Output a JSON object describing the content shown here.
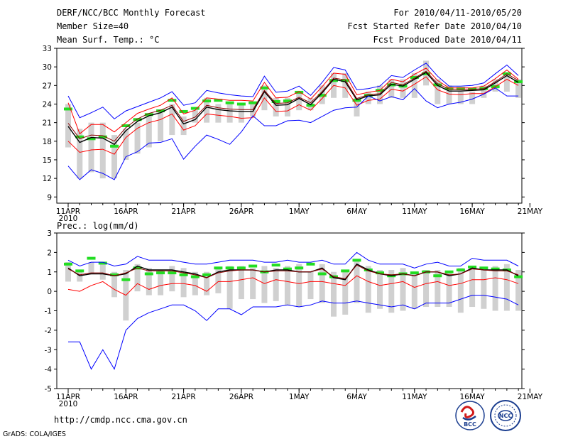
{
  "header": {
    "title": "DERF/NCC/BCC Monthly Forecast",
    "member_size": "Member Size=40",
    "variable": "Mean Surf. Temp.: °C",
    "period": "For 2010/04/11-2010/05/20",
    "start_ref": "Fcst Started Refer Date 2010/04/10",
    "produced": "Fcst Produced Date 2010/04/11"
  },
  "footer": {
    "url": "http://cmdp.ncc.cma.gov.cn",
    "credit": "GrADS: COLA/IGES",
    "logo_bcc": "BCC",
    "logo_ncc": "NCC"
  },
  "colors": {
    "mean": "#000000",
    "obs": "#8b0000",
    "spread_hi": "#ff0000",
    "spread_lo": "#ff0000",
    "envelope": "#0000ff",
    "box": "#d0d0d0",
    "clim": "#22dd22"
  },
  "chart_data": [
    {
      "type": "line",
      "title": "Mean Surf. Temp.: °C",
      "x": [
        "11APR",
        "12APR",
        "13APR",
        "14APR",
        "15APR",
        "16APR",
        "17APR",
        "18APR",
        "19APR",
        "20APR",
        "21APR",
        "22APR",
        "23APR",
        "24APR",
        "25APR",
        "26APR",
        "27APR",
        "28APR",
        "29APR",
        "30APR",
        "1MAY",
        "2MAY",
        "3MAY",
        "4MAY",
        "5MAY",
        "6MAY",
        "7MAY",
        "8MAY",
        "9MAY",
        "10MAY",
        "11MAY",
        "12MAY",
        "13MAY",
        "14MAY",
        "15MAY",
        "16MAY",
        "17MAY",
        "18MAY",
        "19MAY",
        "20MAY"
      ],
      "xtick_labels": [
        "11APR",
        "16APR",
        "21APR",
        "26APR",
        "1MAY",
        "6MAY",
        "11MAY",
        "16MAY",
        "21MAY"
      ],
      "xtick_sub": "2010",
      "ylim": [
        8,
        33
      ],
      "yticks": [
        9,
        12,
        15,
        18,
        21,
        24,
        27,
        30,
        33
      ],
      "series": [
        {
          "name": "ensemble-max",
          "values": [
            25.3,
            21.8,
            22.6,
            23.5,
            21.6,
            22.9,
            23.6,
            24.3,
            25.0,
            26.0,
            23.8,
            24.2,
            26.2,
            25.8,
            25.5,
            25.3,
            25.2,
            28.5,
            25.9,
            26.1,
            26.9,
            25.4,
            27.5,
            29.9,
            29.5,
            26.3,
            26.5,
            26.9,
            28.6,
            28.3,
            29.5,
            30.6,
            28.5,
            26.9,
            26.9,
            27.0,
            27.4,
            28.9,
            30.3,
            28.6
          ]
        },
        {
          "name": "spread-hi",
          "values": [
            24.2,
            19.2,
            20.7,
            20.7,
            19.5,
            21.0,
            22.5,
            23.2,
            23.8,
            25.0,
            22.4,
            23.0,
            25.0,
            24.8,
            24.6,
            24.6,
            24.5,
            27.5,
            25.0,
            25.1,
            26.0,
            24.8,
            26.8,
            29.0,
            28.8,
            25.5,
            25.9,
            26.2,
            28.0,
            27.6,
            28.8,
            29.8,
            27.8,
            26.6,
            26.6,
            26.6,
            26.9,
            28.1,
            29.5,
            28.0
          ]
        },
        {
          "name": "ensemble-mean",
          "values": [
            20.4,
            17.8,
            18.6,
            18.5,
            17.5,
            19.7,
            21.2,
            22.1,
            22.6,
            23.5,
            20.8,
            21.5,
            23.5,
            23.1,
            22.9,
            22.8,
            22.8,
            26.0,
            23.8,
            23.9,
            24.9,
            23.9,
            25.8,
            28.0,
            27.6,
            24.7,
            25.3,
            25.5,
            27.2,
            26.9,
            28.0,
            29.1,
            27.0,
            26.1,
            26.1,
            26.2,
            26.3,
            27.4,
            28.6,
            27.5
          ]
        },
        {
          "name": "observed",
          "values": [
            20.9,
            18.4,
            19.0,
            18.9,
            18.0,
            20.2,
            21.6,
            22.5,
            23.0,
            23.8,
            21.2,
            21.9,
            23.8,
            23.4,
            23.2,
            23.1,
            23.1,
            26.2,
            24.1,
            24.2,
            25.1,
            24.2,
            26.0,
            28.2,
            27.9,
            24.9,
            25.5,
            25.7,
            27.5,
            27.1,
            28.2,
            29.3,
            27.3,
            26.4,
            26.3,
            26.4,
            26.5,
            27.6,
            28.9,
            27.8
          ]
        },
        {
          "name": "spread-lo",
          "values": [
            18.0,
            16.2,
            16.6,
            16.7,
            15.9,
            18.6,
            20.1,
            21.0,
            21.5,
            22.4,
            19.8,
            20.5,
            22.4,
            22.2,
            22.0,
            21.7,
            21.8,
            25.0,
            22.8,
            22.9,
            23.9,
            23.0,
            24.9,
            27.0,
            26.6,
            23.8,
            24.6,
            24.8,
            26.4,
            26.1,
            27.2,
            28.4,
            26.3,
            25.6,
            25.5,
            25.7,
            25.7,
            26.8,
            28.0,
            27.0
          ]
        },
        {
          "name": "ensemble-min",
          "values": [
            14.0,
            11.8,
            13.4,
            12.8,
            11.8,
            15.5,
            16.3,
            17.7,
            17.8,
            18.4,
            15.1,
            17.2,
            19.0,
            18.3,
            17.5,
            19.5,
            22.1,
            20.5,
            20.5,
            21.3,
            21.4,
            21.0,
            22.0,
            23.0,
            23.4,
            23.5,
            25.3,
            24.5,
            25.2,
            24.7,
            26.5,
            24.5,
            23.4,
            24.0,
            24.3,
            24.8,
            25.6,
            26.6,
            25.3,
            25.3
          ]
        }
      ],
      "boxes_low": [
        17,
        12,
        13,
        12,
        12,
        15,
        16,
        17,
        18,
        19,
        19,
        21,
        21,
        21,
        21,
        21,
        22,
        23,
        22,
        22,
        23,
        23,
        24,
        25,
        25,
        22,
        24,
        24,
        25,
        25,
        25,
        27,
        24,
        24,
        24,
        24,
        25,
        26,
        26,
        25
      ],
      "boxes_high": [
        24,
        20,
        21,
        21,
        19,
        20,
        21,
        22,
        23,
        24,
        22,
        23,
        25,
        24,
        24,
        24,
        24,
        27,
        25,
        25,
        26,
        25,
        27,
        29,
        29,
        25,
        26,
        27,
        28,
        28,
        29,
        31,
        28,
        27,
        26,
        26,
        27,
        28,
        29,
        28
      ],
      "clim_marks": [
        23.2,
        18.7,
        18.4,
        18.7,
        17.2,
        20.5,
        21.5,
        22.3,
        22.9,
        24.6,
        22.8,
        23.3,
        24.5,
        24.6,
        24.2,
        24.0,
        24.2,
        26.6,
        24.4,
        24.5,
        25.9,
        23.8,
        25.4,
        27.8,
        27.8,
        24.6,
        25.4,
        26.2,
        27.1,
        26.9,
        28.3,
        28.9,
        27.1,
        26.5,
        26.5,
        26.4,
        26.5,
        26.8,
        28.9,
        27.6
      ]
    },
    {
      "type": "line",
      "title": "Prec.: log(mm/d)",
      "x": [
        "11APR",
        "12APR",
        "13APR",
        "14APR",
        "15APR",
        "16APR",
        "17APR",
        "18APR",
        "19APR",
        "20APR",
        "21APR",
        "22APR",
        "23APR",
        "24APR",
        "25APR",
        "26APR",
        "27APR",
        "28APR",
        "29APR",
        "30APR",
        "1MAY",
        "2MAY",
        "3MAY",
        "4MAY",
        "5MAY",
        "6MAY",
        "7MAY",
        "8MAY",
        "9MAY",
        "10MAY",
        "11MAY",
        "12MAY",
        "13MAY",
        "14MAY",
        "15MAY",
        "16MAY",
        "17MAY",
        "18MAY",
        "19MAY",
        "20MAY"
      ],
      "xtick_labels": [
        "11APR",
        "16APR",
        "21APR",
        "26APR",
        "1MAY",
        "6MAY",
        "11MAY",
        "16MAY",
        "21MAY"
      ],
      "xtick_sub": "2010",
      "ylim": [
        -5,
        3
      ],
      "yticks": [
        -5,
        -4,
        -3,
        -2,
        -1,
        0,
        1,
        2,
        3
      ],
      "series": [
        {
          "name": "ensemble-max",
          "values": [
            1.6,
            1.3,
            1.5,
            1.5,
            1.3,
            1.4,
            1.8,
            1.6,
            1.6,
            1.6,
            1.5,
            1.4,
            1.4,
            1.5,
            1.6,
            1.6,
            1.6,
            1.5,
            1.5,
            1.6,
            1.5,
            1.5,
            1.6,
            1.4,
            1.4,
            2.0,
            1.6,
            1.4,
            1.4,
            1.4,
            1.2,
            1.4,
            1.5,
            1.3,
            1.3,
            1.7,
            1.6,
            1.6,
            1.6,
            1.3
          ]
        },
        {
          "name": "ensemble-mean",
          "values": [
            1.2,
            0.8,
            0.9,
            0.9,
            0.8,
            0.9,
            1.3,
            1.1,
            1.1,
            1.1,
            1.0,
            0.9,
            0.7,
            1.0,
            1.1,
            1.1,
            1.1,
            1.0,
            1.1,
            1.1,
            1.0,
            1.0,
            1.2,
            0.7,
            0.6,
            1.4,
            1.1,
            0.9,
            0.8,
            0.9,
            0.8,
            1.0,
            1.0,
            0.8,
            0.9,
            1.2,
            1.1,
            1.1,
            1.1,
            0.8
          ]
        },
        {
          "name": "observed",
          "values": [
            1.15,
            0.85,
            0.95,
            0.95,
            0.8,
            0.95,
            1.2,
            1.05,
            1.05,
            1.05,
            0.95,
            0.85,
            0.7,
            0.95,
            1.05,
            1.1,
            1.1,
            1.0,
            1.05,
            1.05,
            1.0,
            1.0,
            1.15,
            0.75,
            0.65,
            1.35,
            1.05,
            0.9,
            0.85,
            0.9,
            0.8,
            1.0,
            1.0,
            0.85,
            0.9,
            1.15,
            1.1,
            1.05,
            1.05,
            0.85
          ]
        },
        {
          "name": "spread-lo",
          "values": [
            0.1,
            0.0,
            0.3,
            0.5,
            0.1,
            -0.2,
            0.4,
            0.1,
            0.3,
            0.4,
            0.4,
            0.3,
            0.0,
            0.5,
            0.5,
            0.6,
            0.7,
            0.4,
            0.6,
            0.5,
            0.4,
            0.5,
            0.5,
            0.4,
            0.3,
            0.8,
            0.5,
            0.3,
            0.4,
            0.5,
            0.2,
            0.4,
            0.5,
            0.3,
            0.4,
            0.6,
            0.6,
            0.7,
            0.6,
            0.4
          ]
        },
        {
          "name": "ensemble-min",
          "values": [
            -2.6,
            -2.6,
            -4.0,
            -3.0,
            -4.0,
            -2.0,
            -1.4,
            -1.1,
            -0.9,
            -0.7,
            -0.7,
            -1.0,
            -1.5,
            -0.9,
            -0.9,
            -1.2,
            -0.8,
            -0.8,
            -0.8,
            -0.7,
            -0.8,
            -0.7,
            -0.5,
            -0.6,
            -0.6,
            -0.5,
            -0.6,
            -0.7,
            -0.8,
            -0.7,
            -0.9,
            -0.6,
            -0.6,
            -0.6,
            -0.4,
            -0.2,
            -0.2,
            -0.3,
            -0.4,
            -0.7
          ]
        }
      ],
      "boxes_low": [
        0.5,
        0.5,
        0.9,
        0.6,
        -0.3,
        -1.5,
        0.0,
        -0.2,
        -0.2,
        0.0,
        -0.3,
        -0.2,
        -0.2,
        -0.1,
        -0.9,
        -0.4,
        -0.4,
        -0.6,
        -0.5,
        -0.7,
        -0.8,
        -0.4,
        -0.6,
        -1.3,
        -1.2,
        -0.6,
        -1.1,
        -0.9,
        -1.1,
        -1.0,
        -0.9,
        -0.8,
        -0.8,
        -0.8,
        -1.1,
        -0.8,
        -0.9,
        -1.0,
        -1.0,
        -1.0
      ],
      "boxes_high": [
        1.5,
        1.1,
        1.5,
        1.4,
        1.0,
        1.1,
        1.4,
        1.2,
        1.1,
        1.3,
        1.2,
        1.0,
        1.0,
        1.2,
        1.3,
        1.3,
        1.2,
        1.3,
        1.2,
        1.3,
        1.4,
        1.0,
        1.4,
        1.0,
        1.0,
        1.6,
        1.3,
        1.1,
        1.1,
        1.2,
        1.0,
        1.1,
        1.1,
        1.0,
        1.2,
        1.3,
        1.2,
        1.3,
        1.4,
        1.1
      ],
      "clim_marks": [
        1.4,
        1.05,
        1.7,
        1.45,
        0.85,
        0.6,
        1.2,
        0.9,
        0.95,
        0.95,
        0.85,
        0.75,
        0.85,
        1.2,
        1.2,
        1.2,
        1.3,
        1.0,
        1.35,
        1.15,
        1.2,
        1.4,
        0.9,
        0.75,
        1.05,
        1.6,
        1.1,
        0.95,
        0.8,
        0.9,
        0.95,
        1.0,
        0.8,
        1.0,
        1.1,
        1.25,
        1.2,
        1.15,
        1.1,
        0.75
      ]
    }
  ]
}
